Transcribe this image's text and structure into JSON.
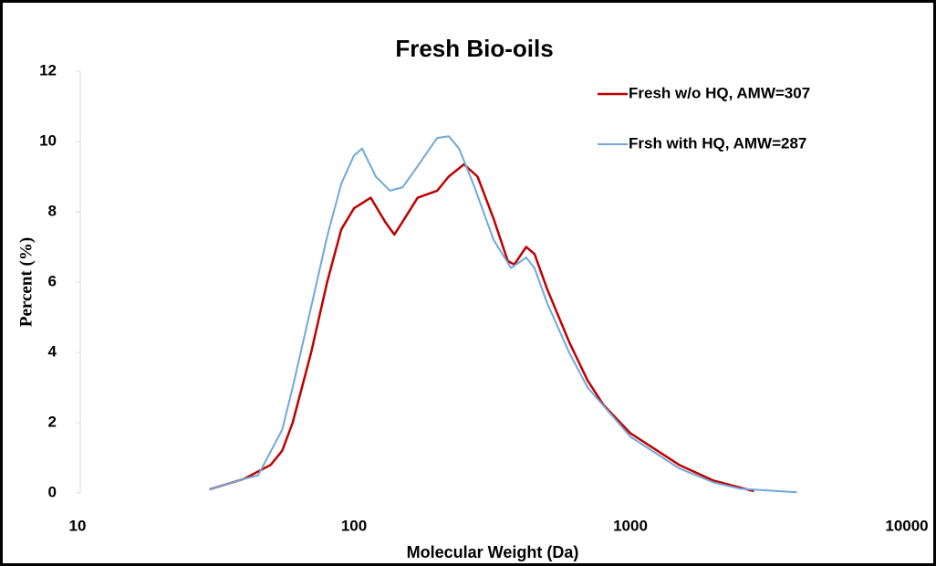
{
  "chart_data": {
    "type": "line",
    "title": "Fresh Bio-oils",
    "xlabel": "Molecular Weight (Da)",
    "ylabel": "Percent (%)",
    "xscale": "log",
    "xlim": [
      10,
      10000
    ],
    "xticks": [
      10,
      100,
      1000,
      10000
    ],
    "ylim": [
      0,
      12
    ],
    "yticks": [
      0,
      2,
      4,
      6,
      8,
      10,
      12
    ],
    "grid": false,
    "legend": "upper right",
    "series": [
      {
        "name": "Fresh w/o HQ, AMW=307",
        "color": "#c00000",
        "x": [
          30,
          40,
          50,
          55,
          60,
          70,
          80,
          90,
          100,
          115,
          130,
          140,
          155,
          170,
          200,
          220,
          250,
          280,
          320,
          360,
          380,
          420,
          450,
          500,
          600,
          700,
          800,
          1000,
          1500,
          2000,
          2800
        ],
        "values": [
          0.1,
          0.4,
          0.8,
          1.2,
          2,
          4,
          6,
          7.5,
          8.1,
          8.4,
          7.7,
          7.35,
          7.9,
          8.4,
          8.6,
          9.0,
          9.35,
          9.0,
          7.8,
          6.6,
          6.5,
          7.0,
          6.8,
          5.8,
          4.3,
          3.2,
          2.5,
          1.7,
          0.8,
          0.35,
          0.05
        ]
      },
      {
        "name": "Frsh with HQ, AMW=287",
        "color": "#6fa8dc",
        "x": [
          30,
          40,
          45,
          55,
          60,
          70,
          80,
          90,
          100,
          107,
          120,
          135,
          150,
          170,
          200,
          220,
          240,
          270,
          320,
          370,
          420,
          450,
          500,
          600,
          700,
          1000,
          1500,
          2000,
          2500,
          4000
        ],
        "values": [
          0.1,
          0.4,
          0.5,
          1.8,
          3,
          5.3,
          7.3,
          8.8,
          9.6,
          9.8,
          9.0,
          8.6,
          8.7,
          9.3,
          10.1,
          10.15,
          9.8,
          8.8,
          7.2,
          6.4,
          6.7,
          6.4,
          5.4,
          4.0,
          3.0,
          1.6,
          0.7,
          0.3,
          0.12,
          0.02
        ]
      }
    ]
  }
}
